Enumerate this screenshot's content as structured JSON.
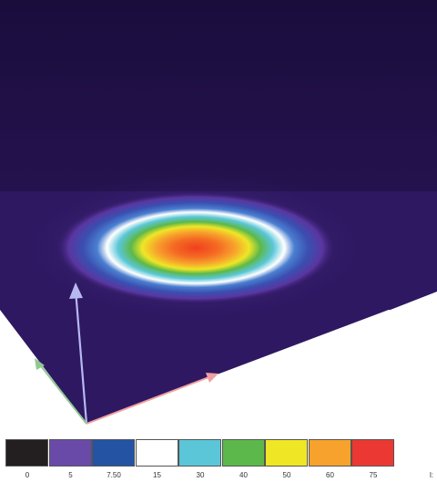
{
  "legend": {
    "colors": [
      "#231f20",
      "#6a4aa8",
      "#2453a3",
      "#ffffff",
      "#5ac6d8",
      "#5cb84a",
      "#efe626",
      "#f7a22c",
      "#eb3833"
    ],
    "labels": [
      "0",
      "5",
      "7.50",
      "15",
      "30",
      "40",
      "50",
      "60",
      "75"
    ],
    "unit_fragment": "l:"
  },
  "scene": {
    "background_color": "#24124f",
    "floor_edge_color": "#2a1458",
    "axis_colors": {
      "up": "#b8b8f0",
      "right": "#f0a0a0",
      "left": "#90c890"
    }
  }
}
